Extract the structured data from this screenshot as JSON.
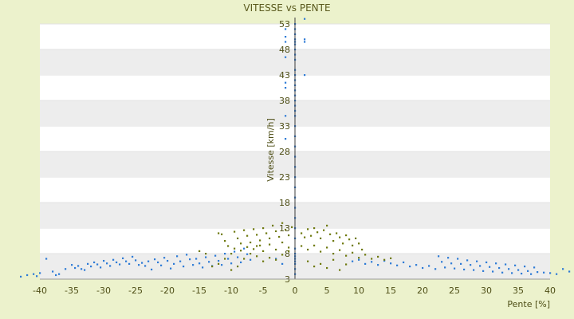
{
  "chart_data": {
    "type": "scatter",
    "title": "VITESSE vs PENTE",
    "xlabel": "Pente [%]",
    "ylabel": "Vitesse [km/h]",
    "xlim": [
      -40,
      40
    ],
    "ylim": [
      3,
      53
    ],
    "x_ticks": [
      "-40",
      "-35",
      "-30",
      "-25",
      "-20",
      "-15",
      "-10",
      "-5",
      "0",
      "5",
      "10",
      "15",
      "20",
      "25",
      "30",
      "35",
      "40"
    ],
    "y_ticks": [
      "3",
      "8",
      "13",
      "18",
      "23",
      "28",
      "33",
      "38",
      "43",
      "48",
      "53"
    ],
    "grid": "horizontal bands",
    "legend": "none",
    "colors": {
      "series_blue": "#2e7bd6",
      "series_olive": "#6f7a10",
      "band": "#ededed",
      "plot_bg": "#ffffff",
      "axis": "#3c3c3c"
    },
    "series": [
      {
        "color": "blue",
        "points": [
          [
            0,
            53
          ],
          [
            0,
            52
          ],
          [
            0,
            51
          ],
          [
            0,
            50
          ],
          [
            0,
            49.5
          ],
          [
            0,
            49
          ],
          [
            0,
            48
          ],
          [
            0,
            47
          ],
          [
            0,
            46
          ],
          [
            0,
            44
          ],
          [
            0,
            43
          ],
          [
            0,
            42
          ],
          [
            0,
            41
          ],
          [
            0,
            40
          ],
          [
            0,
            39
          ],
          [
            0,
            38
          ],
          [
            0,
            37
          ],
          [
            0,
            36
          ],
          [
            0,
            35
          ],
          [
            0,
            33
          ],
          [
            0,
            31
          ],
          [
            0,
            29
          ],
          [
            0,
            27
          ],
          [
            0,
            25
          ],
          [
            0,
            23
          ],
          [
            0,
            21
          ],
          [
            0,
            19
          ],
          [
            0,
            17
          ],
          [
            0,
            15
          ],
          [
            0,
            13
          ],
          [
            0,
            11
          ],
          [
            0,
            9
          ],
          [
            0,
            8
          ],
          [
            0,
            7
          ],
          [
            0,
            6
          ],
          [
            0,
            5
          ],
          [
            0,
            4
          ],
          [
            -1.5,
            52
          ],
          [
            -1.5,
            50.5
          ],
          [
            -1.5,
            49.5
          ],
          [
            -1.5,
            46.5
          ],
          [
            -1.5,
            41.5
          ],
          [
            -1.5,
            40.5
          ],
          [
            -1.5,
            35
          ],
          [
            -1.5,
            30.5
          ],
          [
            1.5,
            54
          ],
          [
            1.5,
            50
          ],
          [
            1.5,
            49.5
          ],
          [
            1.5,
            43
          ],
          [
            -43,
            3.5
          ],
          [
            -42,
            3.8
          ],
          [
            -41,
            4
          ],
          [
            -40.5,
            3.6
          ],
          [
            -40,
            4.2
          ],
          [
            -39,
            7
          ],
          [
            -38,
            4.5
          ],
          [
            -37.5,
            3.8
          ],
          [
            -37,
            4
          ],
          [
            -36,
            5
          ],
          [
            -35,
            5.8
          ],
          [
            -34.5,
            5.2
          ],
          [
            -34,
            5.6
          ],
          [
            -33.5,
            5
          ],
          [
            -33,
            4.8
          ],
          [
            -32.5,
            6
          ],
          [
            -32,
            5.5
          ],
          [
            -31.5,
            6.3
          ],
          [
            -31,
            5.9
          ],
          [
            -30.5,
            5.3
          ],
          [
            -30,
            6.6
          ],
          [
            -29.5,
            6.1
          ],
          [
            -29,
            5.6
          ],
          [
            -28.5,
            6.8
          ],
          [
            -28,
            6.3
          ],
          [
            -27.5,
            5.9
          ],
          [
            -27,
            7.1
          ],
          [
            -26.5,
            6.5
          ],
          [
            -26,
            6
          ],
          [
            -25.5,
            7.4
          ],
          [
            -25,
            6.7
          ],
          [
            -24.5,
            5.8
          ],
          [
            -24,
            6.2
          ],
          [
            -23.5,
            5.6
          ],
          [
            -23,
            6.5
          ],
          [
            -22.5,
            4.9
          ],
          [
            -22,
            6.9
          ],
          [
            -21.5,
            6.3
          ],
          [
            -21,
            5.7
          ],
          [
            -20.5,
            7.2
          ],
          [
            -20,
            6.6
          ],
          [
            -19.5,
            5.1
          ],
          [
            -19,
            6
          ],
          [
            -18.5,
            7.5
          ],
          [
            -18,
            6.5
          ],
          [
            -17.5,
            5.5
          ],
          [
            -17,
            7.8
          ],
          [
            -16.5,
            6.9
          ],
          [
            -16,
            5.8
          ],
          [
            -15.5,
            7
          ],
          [
            -15,
            6.1
          ],
          [
            -14.5,
            5.3
          ],
          [
            -14,
            7.3
          ],
          [
            -13.5,
            6.4
          ],
          [
            -13,
            5.6
          ],
          [
            -12.5,
            7.6
          ],
          [
            -12,
            6.6
          ],
          [
            -11.5,
            5.8
          ],
          [
            -11,
            8
          ],
          [
            -10.5,
            7
          ],
          [
            -10,
            6.1
          ],
          [
            -9.5,
            8.4
          ],
          [
            -9,
            7.3
          ],
          [
            -8.5,
            6.3
          ],
          [
            -8,
            9
          ],
          [
            -7.5,
            7.9
          ],
          [
            -7,
            6.8
          ],
          [
            -3,
            7
          ],
          [
            -2,
            6
          ],
          [
            0,
            7.5
          ],
          [
            0,
            6.5
          ],
          [
            9,
            6.5
          ],
          [
            10,
            6.8
          ],
          [
            11,
            6
          ],
          [
            12,
            6.4
          ],
          [
            13,
            5.8
          ],
          [
            14,
            6.6
          ],
          [
            15,
            6.1
          ],
          [
            16,
            5.7
          ],
          [
            17,
            6.3
          ],
          [
            18,
            5.5
          ],
          [
            19,
            5.8
          ],
          [
            20,
            5.2
          ],
          [
            21,
            5.6
          ],
          [
            22,
            5
          ],
          [
            22.5,
            7.5
          ],
          [
            23,
            6.4
          ],
          [
            23.5,
            5.3
          ],
          [
            24,
            7.2
          ],
          [
            24.5,
            6.1
          ],
          [
            25,
            5.1
          ],
          [
            25.5,
            7
          ],
          [
            26,
            6
          ],
          [
            26.5,
            4.9
          ],
          [
            27,
            6.7
          ],
          [
            27.5,
            5.8
          ],
          [
            28,
            4.8
          ],
          [
            28.5,
            6.5
          ],
          [
            29,
            5.6
          ],
          [
            29.5,
            4.6
          ],
          [
            30,
            6.3
          ],
          [
            30.5,
            5.4
          ],
          [
            31,
            4.5
          ],
          [
            31.5,
            6.1
          ],
          [
            32,
            5.2
          ],
          [
            32.5,
            4.3
          ],
          [
            33,
            5.9
          ],
          [
            33.5,
            5
          ],
          [
            34,
            4.2
          ],
          [
            34.5,
            5.7
          ],
          [
            35,
            4.8
          ],
          [
            35.5,
            4.1
          ],
          [
            36,
            5.5
          ],
          [
            36.5,
            4.6
          ],
          [
            37,
            4
          ],
          [
            37.5,
            5.3
          ],
          [
            38,
            4.4
          ],
          [
            39,
            4.3
          ],
          [
            40,
            4.2
          ],
          [
            41,
            4
          ],
          [
            42,
            5
          ],
          [
            43,
            4.5
          ]
        ]
      },
      {
        "color": "olive",
        "points": [
          [
            -12,
            12
          ],
          [
            -11.5,
            11.8
          ],
          [
            -11,
            10.5
          ],
          [
            -10.5,
            9.5
          ],
          [
            -10,
            8
          ],
          [
            -9.5,
            12.3
          ],
          [
            -9,
            11
          ],
          [
            -8.5,
            10
          ],
          [
            -8,
            12.6
          ],
          [
            -7.5,
            11.5
          ],
          [
            -7,
            10.2
          ],
          [
            -6.5,
            12.8
          ],
          [
            -6,
            11.7
          ],
          [
            -5.5,
            10.6
          ],
          [
            -5,
            13
          ],
          [
            -4.5,
            12
          ],
          [
            -4,
            11
          ],
          [
            -3.5,
            13.5
          ],
          [
            -3,
            12.4
          ],
          [
            -2.5,
            11.3
          ],
          [
            -2,
            14
          ],
          [
            -1.5,
            12.7
          ],
          [
            -1,
            11.6
          ],
          [
            -0.5,
            13.2
          ],
          [
            -6,
            9.5
          ],
          [
            -5,
            8.5
          ],
          [
            -4,
            9.8
          ],
          [
            -3,
            8.8
          ],
          [
            -2,
            10.2
          ],
          [
            -1,
            9.2
          ],
          [
            -8,
            7
          ],
          [
            -7,
            8
          ],
          [
            -6,
            7.5
          ],
          [
            -5,
            6.5
          ],
          [
            -4,
            7.2
          ],
          [
            -3,
            6.8
          ],
          [
            -2,
            7.8
          ],
          [
            -1,
            8.5
          ],
          [
            -9,
            5.5
          ],
          [
            -10,
            4.8
          ],
          [
            -11,
            7
          ],
          [
            -12,
            6
          ],
          [
            -13,
            5.5
          ],
          [
            -14,
            8
          ],
          [
            -15,
            8.5
          ],
          [
            -9.5,
            9
          ],
          [
            -8.5,
            8.6
          ],
          [
            -7.5,
            9.3
          ],
          [
            -6.5,
            8.9
          ],
          [
            -5.5,
            9.6
          ],
          [
            1,
            12
          ],
          [
            1.5,
            11.2
          ],
          [
            2,
            12.8
          ],
          [
            2.5,
            11.5
          ],
          [
            3,
            13
          ],
          [
            3.5,
            12.2
          ],
          [
            4,
            11
          ],
          [
            4.5,
            12.6
          ],
          [
            5,
            13.5
          ],
          [
            5.5,
            11.8
          ],
          [
            6,
            10.5
          ],
          [
            6.5,
            12
          ],
          [
            7,
            11.2
          ],
          [
            7.5,
            10
          ],
          [
            8,
            11.6
          ],
          [
            8.5,
            10.8
          ],
          [
            9,
            9.6
          ],
          [
            9.5,
            11
          ],
          [
            10,
            10
          ],
          [
            10.5,
            8.8
          ],
          [
            1,
            9.5
          ],
          [
            2,
            8.8
          ],
          [
            3,
            9.6
          ],
          [
            4,
            8.4
          ],
          [
            5,
            9.2
          ],
          [
            6,
            8
          ],
          [
            7,
            8.7
          ],
          [
            8,
            7.6
          ],
          [
            9,
            8.2
          ],
          [
            10,
            7.2
          ],
          [
            11,
            7.8
          ],
          [
            12,
            7
          ],
          [
            13,
            7.4
          ],
          [
            14,
            6.8
          ],
          [
            15,
            7.1
          ],
          [
            2,
            6.5
          ],
          [
            4,
            6
          ],
          [
            6,
            6.8
          ],
          [
            8,
            5.9
          ],
          [
            3,
            5.5
          ],
          [
            5,
            5.2
          ],
          [
            7,
            4.8
          ]
        ]
      }
    ]
  }
}
